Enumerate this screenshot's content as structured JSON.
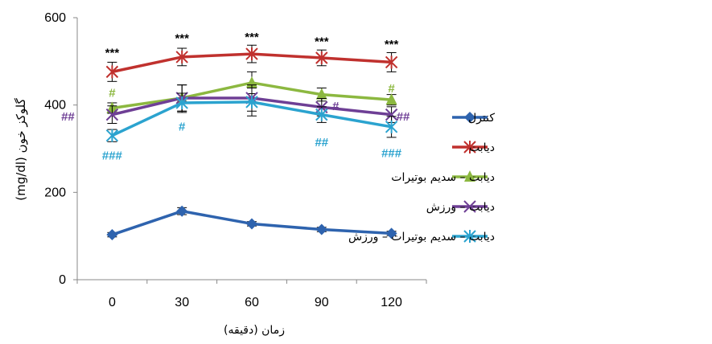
{
  "chart_data": {
    "type": "line",
    "title": "",
    "xlabel": "زمان (دقیقه)",
    "ylabel": "گلوکز خون (mg/dl)",
    "x": [
      0,
      30,
      60,
      90,
      120
    ],
    "x_tick_labels": [
      "0",
      "30",
      "60",
      "90",
      "120"
    ],
    "y_ticks": [
      "0",
      "200",
      "400",
      "600"
    ],
    "ylim": [
      0,
      600
    ],
    "grid": false,
    "legend_position": "right",
    "series": [
      {
        "name": "کنترل",
        "color": "#2E63AE",
        "marker": "diamond",
        "values": [
          103,
          157,
          128,
          115,
          106
        ],
        "errors": [
          5,
          8,
          5,
          5,
          5
        ]
      },
      {
        "name": "دیابت",
        "color": "#C0312E",
        "marker": "star",
        "values": [
          476,
          510,
          517,
          508,
          498
        ],
        "errors": [
          22,
          20,
          20,
          18,
          22
        ]
      },
      {
        "name": "دیابت – سدیم بوتیرات",
        "color": "#8CB840",
        "marker": "triangle",
        "values": [
          393,
          416,
          451,
          424,
          412
        ],
        "errors": [
          12,
          30,
          25,
          15,
          12
        ]
      },
      {
        "name": "دیابت – ورزش",
        "color": "#6E3F95",
        "marker": "x",
        "values": [
          378,
          416,
          416,
          395,
          378
        ],
        "errors": [
          20,
          30,
          30,
          20,
          18
        ]
      },
      {
        "name": "دیابت – سدیم بوتیرات – ورزش",
        "color": "#2BA3CF",
        "marker": "asterisk",
        "values": [
          330,
          405,
          407,
          378,
          350
        ],
        "errors": [
          14,
          22,
          32,
          18,
          24
        ]
      }
    ],
    "annotations": [
      {
        "text": "***",
        "x": 0,
        "y": 520,
        "color": "#000000"
      },
      {
        "text": "***",
        "x": 30,
        "y": 553,
        "color": "#000000"
      },
      {
        "text": "***",
        "x": 60,
        "y": 556,
        "color": "#000000"
      },
      {
        "text": "***",
        "x": 90,
        "y": 546,
        "color": "#000000"
      },
      {
        "text": "***",
        "x": 120,
        "y": 539,
        "color": "#000000"
      },
      {
        "text": "#",
        "x": 0,
        "y": 428,
        "color": "#8CB840"
      },
      {
        "text": "#",
        "x": 120,
        "y": 438,
        "color": "#8CB840"
      },
      {
        "text": "##",
        "x": -19,
        "y": 374,
        "color": "#6E3F95"
      },
      {
        "text": "#",
        "x": 96,
        "y": 398,
        "color": "#6E3F95"
      },
      {
        "text": "##",
        "x": 125,
        "y": 374,
        "color": "#6E3F95"
      },
      {
        "text": "###",
        "x": 0,
        "y": 284,
        "color": "#2BA3CF"
      },
      {
        "text": "#",
        "x": 30,
        "y": 351,
        "color": "#2BA3CF"
      },
      {
        "text": "##",
        "x": 90,
        "y": 315,
        "color": "#2BA3CF"
      },
      {
        "text": "###",
        "x": 120,
        "y": 290,
        "color": "#2BA3CF"
      }
    ]
  }
}
